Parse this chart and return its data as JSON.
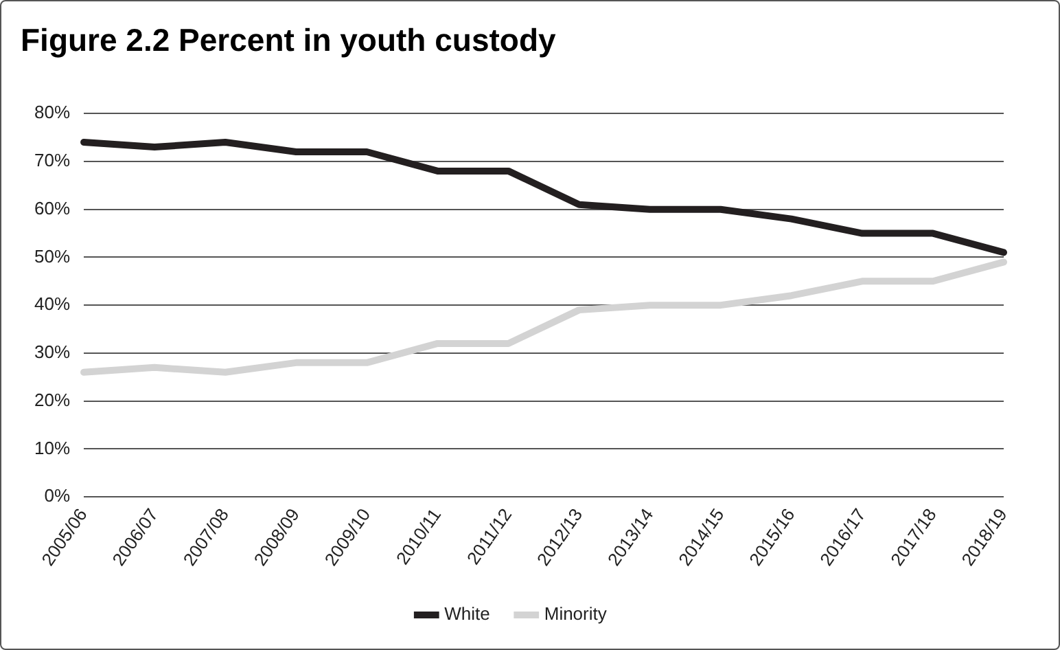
{
  "chart_data": {
    "type": "line",
    "title": "Figure 2.2 Percent in youth custody",
    "categories": [
      "2005/06",
      "2006/07",
      "2007/08",
      "2008/09",
      "2009/10",
      "2010/11",
      "2011/12",
      "2012/13",
      "2013/14",
      "2014/15",
      "2015/16",
      "2016/17",
      "2017/18",
      "2018/19"
    ],
    "series": [
      {
        "name": "White",
        "color": "#231f20",
        "values": [
          74,
          73,
          74,
          72,
          72,
          68,
          68,
          61,
          60,
          60,
          58,
          55,
          55,
          51
        ]
      },
      {
        "name": "Minority",
        "color": "#d3d3d3",
        "values": [
          26,
          27,
          26,
          28,
          28,
          32,
          32,
          39,
          40,
          40,
          42,
          45,
          45,
          49
        ]
      }
    ],
    "ylim": [
      0,
      80
    ],
    "yticks": [
      {
        "value": 0,
        "label": "0%"
      },
      {
        "value": 10,
        "label": "10%"
      },
      {
        "value": 20,
        "label": "20%"
      },
      {
        "value": 30,
        "label": "30%"
      },
      {
        "value": 40,
        "label": "40%"
      },
      {
        "value": 50,
        "label": "50%"
      },
      {
        "value": 60,
        "label": "60%"
      },
      {
        "value": 70,
        "label": "70%"
      },
      {
        "value": 80,
        "label": "80%"
      }
    ],
    "grid": "y",
    "legend": "bottom",
    "marker": "none",
    "line_style": "solid"
  }
}
